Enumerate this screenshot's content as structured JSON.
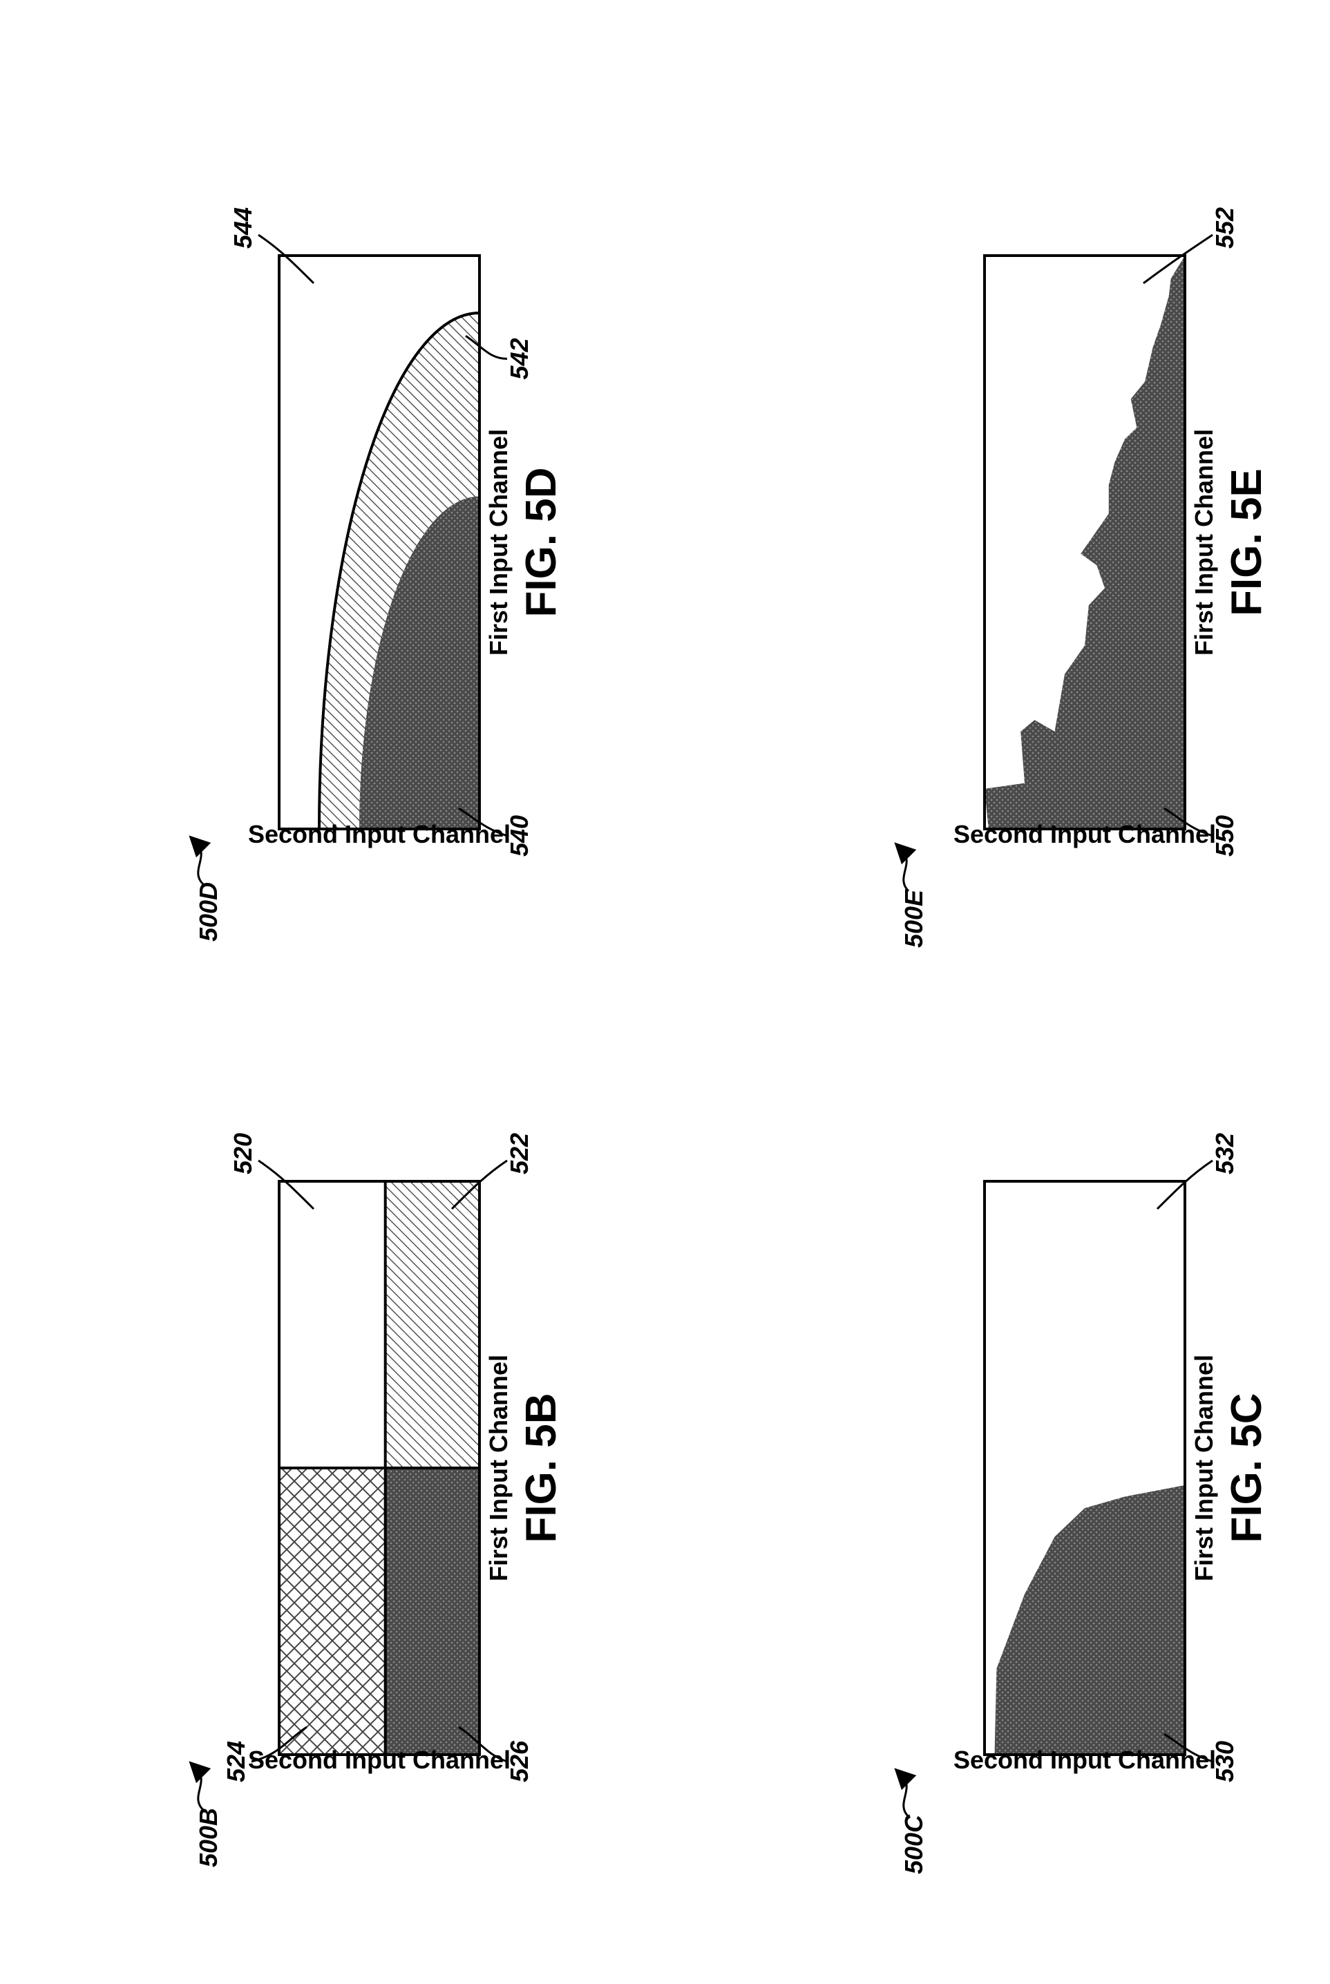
{
  "colors": {
    "dark_region": "#4a4a4a",
    "light_hatch": "#c8c8c8",
    "line": "#000000"
  },
  "fig5b": {
    "ref": "500B",
    "figure_label": "FIG. 5B",
    "x_axis": "First Input Channel",
    "y_axis": "Second Input Channel",
    "regions": {
      "upper_right": "520",
      "lower_right": "522",
      "upper_left": "524",
      "lower_left": "526"
    }
  },
  "fig5c": {
    "ref": "500C",
    "figure_label": "FIG. 5C",
    "x_axis": "First Input Channel",
    "y_axis": "Second Input Channel",
    "regions": {
      "dark": "530",
      "light": "532"
    }
  },
  "fig5d": {
    "ref": "500D",
    "figure_label": "FIG. 5D",
    "x_axis": "First Input Channel",
    "y_axis": "Second Input Channel",
    "regions": {
      "inner": "540",
      "band": "542",
      "outer": "544"
    }
  },
  "fig5e": {
    "ref": "500E",
    "figure_label": "FIG. 5E",
    "x_axis": "First Input Channel",
    "y_axis": "Second Input Channel",
    "regions": {
      "dark": "550",
      "light": "552"
    }
  }
}
